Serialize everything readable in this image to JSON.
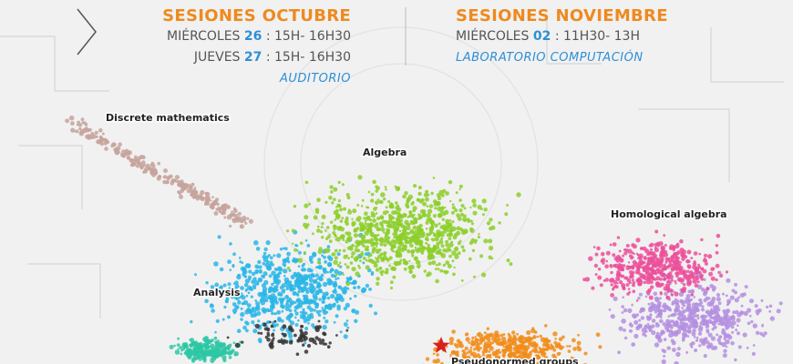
{
  "sessions": [
    {
      "title": "SESIONES OCTUBRE",
      "lines": [
        {
          "day": "MIÉRCOLES",
          "date": "26",
          "time": ": 15H- 16H30"
        },
        {
          "day": "JUEVES",
          "date": "27",
          "time": ": 15H- 16H30"
        }
      ],
      "place": "AUDITORIO"
    },
    {
      "title": "SESIONES NOVIEMBRE",
      "lines": [
        {
          "day": "MIÉRCOLES",
          "date": "02",
          "time": ": 11H30- 13H"
        }
      ],
      "place": "LABORATORIO COMPUTACIÓN"
    }
  ],
  "map": {
    "labels": [
      "Discrete mathematics",
      "Algebra",
      "Homological algebra",
      "Analysis",
      "Pseudonormed groups"
    ]
  }
}
